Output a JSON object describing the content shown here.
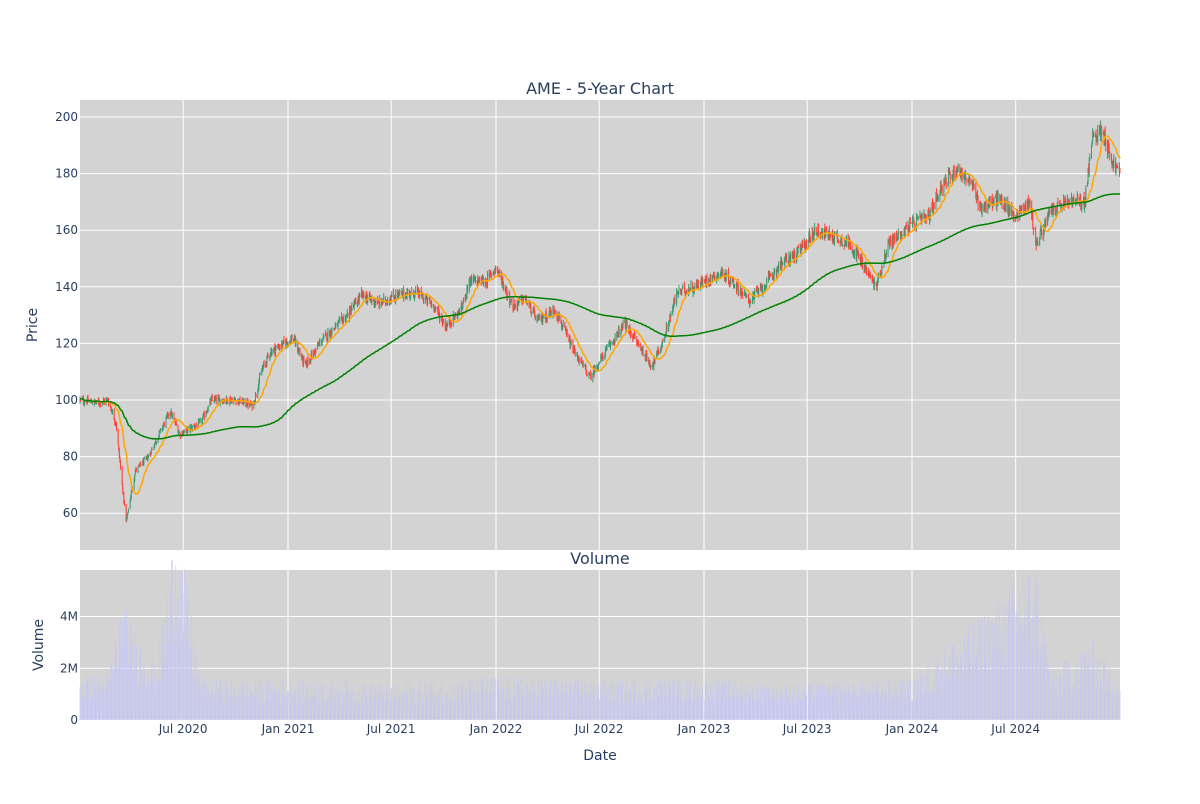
{
  "chart_data": [
    {
      "type": "candlestick",
      "title": "AME - 5-Year Chart",
      "ylabel": "Price",
      "ylim": [
        47,
        206
      ],
      "y_ticks": [
        60,
        80,
        100,
        120,
        140,
        160,
        180,
        200
      ],
      "x_range": [
        "2020-01-02",
        "2024-12-31"
      ],
      "grid": true,
      "colors": {
        "up": "#3d9970",
        "down": "#ff4136",
        "ma_short": "#ffa500",
        "ma_long": "#008000",
        "plot_bg": "#d3d3d3",
        "grid": "#ffffff",
        "text": "#2a3f5f"
      },
      "price_anchors": [
        [
          "2020-01-02",
          100
        ],
        [
          "2020-02-01",
          99
        ],
        [
          "2020-02-20",
          100
        ],
        [
          "2020-03-05",
          92
        ],
        [
          "2020-03-16",
          70
        ],
        [
          "2020-03-23",
          57
        ],
        [
          "2020-04-08",
          75
        ],
        [
          "2020-05-01",
          80
        ],
        [
          "2020-06-08",
          96
        ],
        [
          "2020-06-25",
          88
        ],
        [
          "2020-08-01",
          92
        ],
        [
          "2020-08-20",
          100
        ],
        [
          "2020-10-01",
          100
        ],
        [
          "2020-11-01",
          98
        ],
        [
          "2020-11-15",
          110
        ],
        [
          "2020-12-01",
          117
        ],
        [
          "2021-01-10",
          122
        ],
        [
          "2021-01-31",
          112
        ],
        [
          "2021-03-01",
          121
        ],
        [
          "2021-04-15",
          130
        ],
        [
          "2021-05-10",
          137
        ],
        [
          "2021-06-10",
          134
        ],
        [
          "2021-07-10",
          137
        ],
        [
          "2021-08-15",
          138
        ],
        [
          "2021-09-15",
          133
        ],
        [
          "2021-10-05",
          126
        ],
        [
          "2021-11-01",
          132
        ],
        [
          "2021-11-15",
          142
        ],
        [
          "2021-12-15",
          142
        ],
        [
          "2022-01-01",
          147
        ],
        [
          "2022-01-31",
          133
        ],
        [
          "2022-02-20",
          136
        ],
        [
          "2022-03-15",
          128
        ],
        [
          "2022-04-15",
          132
        ],
        [
          "2022-05-15",
          118
        ],
        [
          "2022-06-15",
          108
        ],
        [
          "2022-07-15",
          118
        ],
        [
          "2022-08-15",
          127
        ],
        [
          "2022-09-10",
          119
        ],
        [
          "2022-10-01",
          112
        ],
        [
          "2022-10-20",
          120
        ],
        [
          "2022-11-15",
          138
        ],
        [
          "2022-12-15",
          140
        ],
        [
          "2023-01-31",
          145
        ],
        [
          "2023-03-01",
          140
        ],
        [
          "2023-03-20",
          135
        ],
        [
          "2023-04-15",
          140
        ],
        [
          "2023-05-15",
          148
        ],
        [
          "2023-06-15",
          152
        ],
        [
          "2023-07-15",
          160
        ],
        [
          "2023-08-15",
          158
        ],
        [
          "2023-09-15",
          155
        ],
        [
          "2023-10-15",
          145
        ],
        [
          "2023-10-30",
          140
        ],
        [
          "2023-11-20",
          155
        ],
        [
          "2023-12-31",
          162
        ],
        [
          "2024-01-31",
          165
        ],
        [
          "2024-02-20",
          175
        ],
        [
          "2024-03-20",
          182
        ],
        [
          "2024-04-15",
          176
        ],
        [
          "2024-05-01",
          168
        ],
        [
          "2024-06-01",
          171
        ],
        [
          "2024-06-30",
          165
        ],
        [
          "2024-07-25",
          170
        ],
        [
          "2024-08-06",
          155
        ],
        [
          "2024-09-01",
          167
        ],
        [
          "2024-10-01",
          170
        ],
        [
          "2024-10-30",
          170
        ],
        [
          "2024-11-12",
          192
        ],
        [
          "2024-11-30",
          196
        ],
        [
          "2024-12-15",
          185
        ],
        [
          "2024-12-31",
          180
        ]
      ],
      "moving_averages": [
        {
          "window": 20,
          "color": "#ffa500"
        },
        {
          "window": 200,
          "color": "#008000"
        }
      ]
    },
    {
      "type": "bar",
      "title": "Volume",
      "ylabel": "Volume",
      "xlabel": "Date",
      "ylim": [
        0,
        5800000
      ],
      "y_ticks": [
        0,
        2000000,
        4000000
      ],
      "y_tick_labels": [
        "0",
        "2M",
        "4M"
      ],
      "x_ticks": [
        "2020-07-01",
        "2021-01-01",
        "2021-07-01",
        "2022-01-01",
        "2022-07-01",
        "2023-01-01",
        "2023-07-01",
        "2024-01-01",
        "2024-07-01"
      ],
      "x_tick_labels": [
        "Jul 2020",
        "Jan 2021",
        "Jul 2021",
        "Jan 2022",
        "Jul 2022",
        "Jan 2023",
        "Jul 2023",
        "Jan 2024",
        "Jul 2024"
      ],
      "bar_color": "#c8c8f0",
      "volume_anchors": [
        [
          "2020-01-02",
          1200000
        ],
        [
          "2020-02-20",
          1300000
        ],
        [
          "2020-03-15",
          3300000
        ],
        [
          "2020-04-15",
          2200000
        ],
        [
          "2020-05-15",
          1500000
        ],
        [
          "2020-06-19",
          5500000
        ],
        [
          "2020-08-01",
          1100000
        ],
        [
          "2021-01-01",
          1100000
        ],
        [
          "2021-07-01",
          1000000
        ],
        [
          "2022-01-01",
          1200000
        ],
        [
          "2022-07-01",
          1100000
        ],
        [
          "2023-01-01",
          1100000
        ],
        [
          "2023-07-01",
          1000000
        ],
        [
          "2024-01-01",
          1100000
        ],
        [
          "2024-08-06",
          4300000
        ],
        [
          "2024-09-01",
          1300000
        ],
        [
          "2024-11-12",
          2200000
        ],
        [
          "2024-12-31",
          1100000
        ]
      ]
    }
  ]
}
